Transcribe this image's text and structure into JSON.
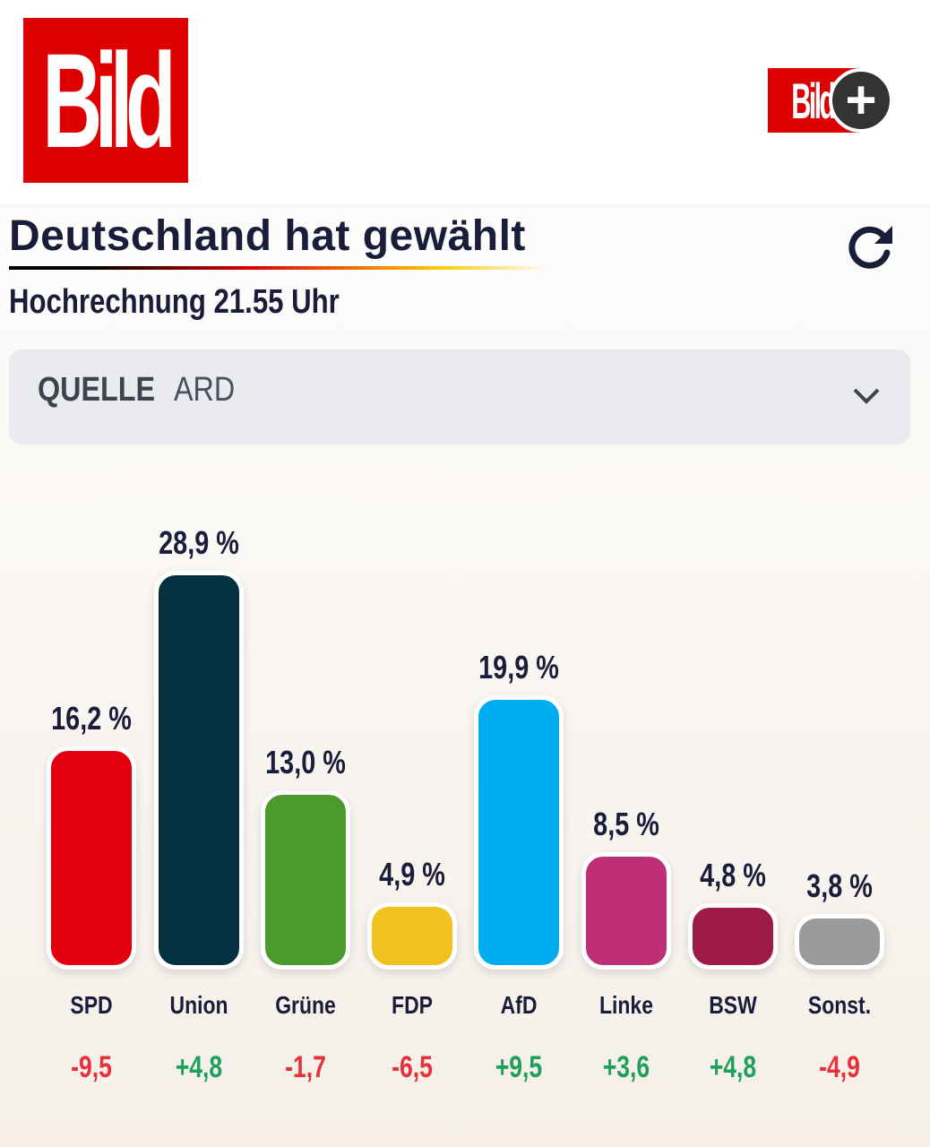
{
  "header": {
    "logo_text": "Bild",
    "plus_logo_text": "Bild"
  },
  "title": "Deutschland hat gewählt",
  "subtitle": "Hochrechnung 21.55 Uhr",
  "source": {
    "label": "QUELLE",
    "value": "ARD"
  },
  "colors": {
    "positive": "#1fa05a",
    "negative": "#e8303a"
  },
  "chart_data": {
    "type": "bar",
    "categories": [
      "SPD",
      "Union",
      "Grüne",
      "FDP",
      "AfD",
      "Linke",
      "BSW",
      "Sonst."
    ],
    "values": [
      16.2,
      28.9,
      13.0,
      4.9,
      19.9,
      8.5,
      4.8,
      3.8
    ],
    "value_labels": [
      "16,2 %",
      "28,9 %",
      "13,0 %",
      "4,9 %",
      "19,9 %",
      "8,5 %",
      "4,8 %",
      "3,8 %"
    ],
    "changes": [
      -9.5,
      4.8,
      -1.7,
      -6.5,
      9.5,
      3.6,
      4.8,
      -4.9
    ],
    "change_labels": [
      "-9,5",
      "+4,8",
      "-1,7",
      "-6,5",
      "+9,5",
      "+3,6",
      "+4,8",
      "-4,9"
    ],
    "colors": [
      "#e2000f",
      "#05303f",
      "#4a9a2d",
      "#f0c220",
      "#00aeef",
      "#bd3075",
      "#9e1a47",
      "#9b9b9b"
    ],
    "ylim": [
      0,
      30
    ]
  }
}
